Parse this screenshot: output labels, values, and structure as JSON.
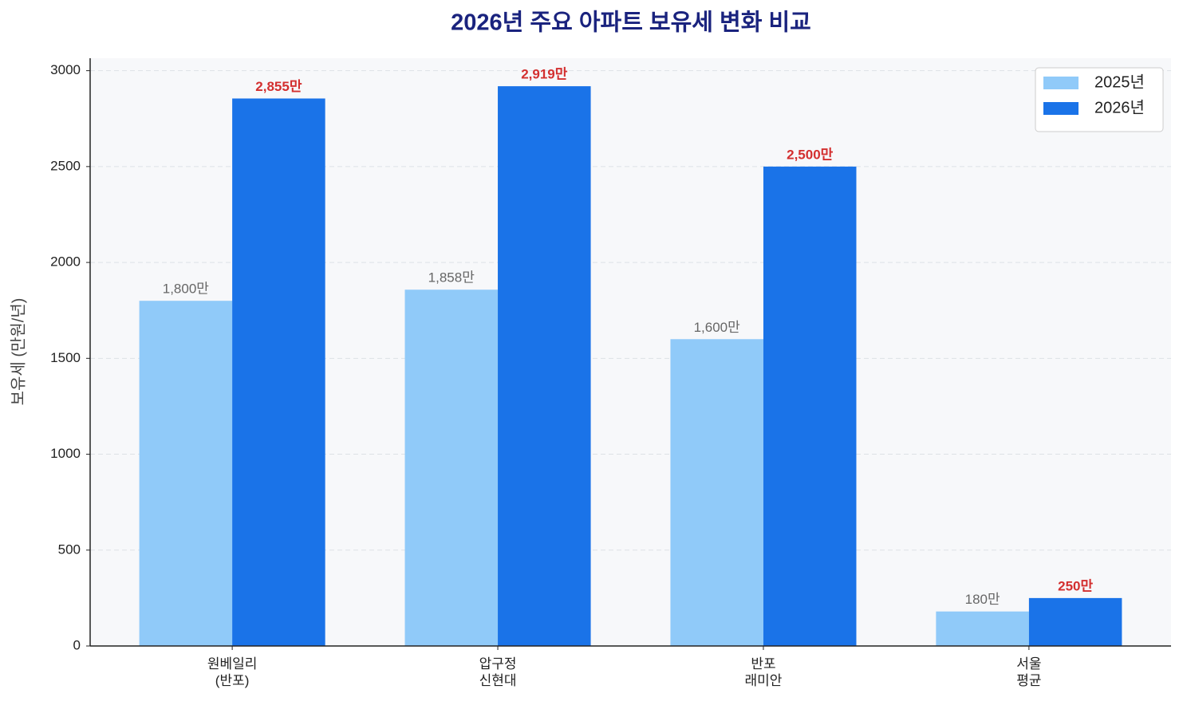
{
  "chart_data": {
    "type": "bar",
    "title": "2026년 주요 아파트 보유세 변화 비교",
    "y_label": "보유세 (만원/년)",
    "categories": [
      "원베일리\n(반포)",
      "압구정\n신현대",
      "반포\n래미안",
      "서울\n평균"
    ],
    "series": [
      {
        "name": "2025년",
        "color": "#90caf9",
        "label_color": "#666666",
        "values": [
          1800,
          1858,
          1600,
          180
        ],
        "value_labels": [
          "1,800만",
          "1,858만",
          "1,600만",
          "180만"
        ]
      },
      {
        "name": "2026년",
        "color": "#1a73e8",
        "label_color": "#d32f2f",
        "values": [
          2855,
          2919,
          2500,
          250
        ],
        "value_labels": [
          "2,855만",
          "2,919만",
          "2,500만",
          "250만"
        ]
      }
    ],
    "ylim": [
      0,
      3065
    ],
    "yticks": [
      0,
      500,
      1000,
      1500,
      2000,
      2500,
      3000
    ],
    "grid": true,
    "legend": "upper right"
  }
}
